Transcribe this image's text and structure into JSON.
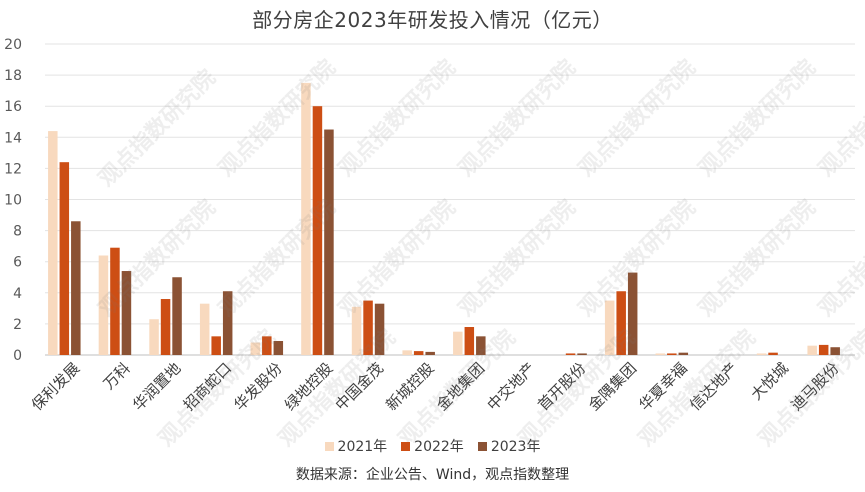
{
  "chart_data": {
    "type": "bar",
    "title": "部分房企2023年研发投入情况（亿元）",
    "xlabel": "",
    "ylabel": "",
    "ylim": [
      0,
      20
    ],
    "yticks": [
      0,
      2,
      4,
      6,
      8,
      10,
      12,
      14,
      16,
      18,
      20
    ],
    "grid": true,
    "legend_position": "bottom",
    "categories": [
      "保利发展",
      "万科",
      "华润置地",
      "招商蛇口",
      "华发股份",
      "绿地控股",
      "中国金茂",
      "新城控股",
      "金地集团",
      "中交地产",
      "首开股份",
      "金隅集团",
      "华夏幸福",
      "信达地产",
      "大悦城",
      "迪马股份"
    ],
    "series": [
      {
        "name": "2021年",
        "color": "#F8D9BE",
        "values": [
          14.4,
          6.4,
          2.3,
          3.3,
          0.8,
          17.5,
          3.1,
          0.3,
          1.5,
          0.0,
          0.0,
          3.5,
          0.1,
          0.0,
          0.1,
          0.6
        ]
      },
      {
        "name": "2022年",
        "color": "#CD4E14",
        "values": [
          12.4,
          6.9,
          3.6,
          1.2,
          1.2,
          16.0,
          3.5,
          0.25,
          1.8,
          0.0,
          0.1,
          4.1,
          0.1,
          0.0,
          0.15,
          0.65
        ]
      },
      {
        "name": "2023年",
        "color": "#8B5234",
        "values": [
          8.6,
          5.4,
          5.0,
          4.1,
          0.9,
          14.5,
          3.3,
          0.2,
          1.2,
          0.0,
          0.1,
          5.3,
          0.15,
          0.0,
          0.0,
          0.5
        ]
      }
    ]
  },
  "source_note": "数据来源：企业公告、Wind，观点指数整理",
  "watermark_text": "观点指数研究院"
}
